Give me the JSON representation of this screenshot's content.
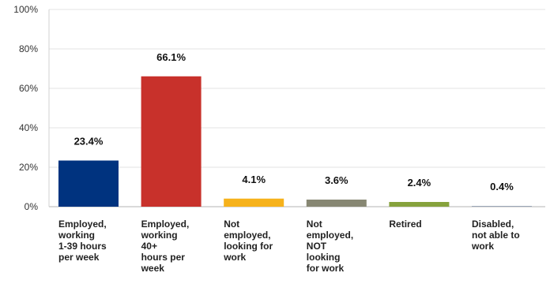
{
  "chart_data": {
    "type": "bar",
    "categories": [
      "Employed, working 1-39 hours per week",
      "Employed, working 40+ hours per week",
      "Not employed, looking for work",
      "Not employed, NOT looking for work",
      "Retired",
      "Disabled, not able to work"
    ],
    "category_lines": [
      [
        "Employed,",
        "working",
        "1-39 hours",
        "per week"
      ],
      [
        "Employed,",
        "working",
        "40+",
        "hours per",
        "week"
      ],
      [
        "Not",
        "employed,",
        "looking for",
        "work"
      ],
      [
        "Not",
        "employed,",
        "NOT",
        "looking",
        "for work"
      ],
      [
        "Retired"
      ],
      [
        "Disabled,",
        "not able to",
        "work"
      ]
    ],
    "values": [
      23.4,
      66.1,
      4.1,
      3.6,
      2.4,
      0.4
    ],
    "data_labels": [
      "23.4%",
      "66.1%",
      "4.1%",
      "3.6%",
      "2.4%",
      "0.4%"
    ],
    "colors": [
      "#00337f",
      "#c8312b",
      "#f6b21c",
      "#878773",
      "#86a23c",
      "#9aa6b6"
    ],
    "title": "",
    "xlabel": "",
    "ylabel": "",
    "ylim": [
      0,
      100
    ],
    "yticks": [
      0,
      20,
      40,
      60,
      80,
      100
    ],
    "ytick_labels": [
      "0%",
      "20%",
      "40%",
      "60%",
      "80%",
      "100%"
    ],
    "grid": true,
    "legend": "none"
  }
}
